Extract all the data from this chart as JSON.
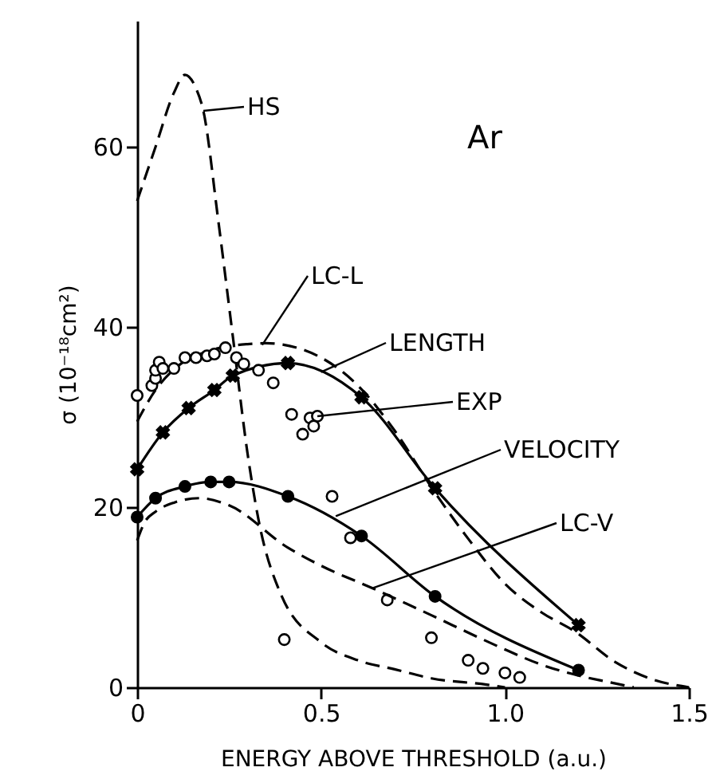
{
  "chart_data": {
    "type": "line",
    "xlabel": "ENERGY ABOVE THRESHOLD (a.u.)",
    "ylabel": "σ (10⁻¹⁸cm²)",
    "xlim": [
      0,
      1.5
    ],
    "ylim": [
      0,
      74
    ],
    "xticks": [
      {
        "value": 0,
        "label": "0"
      },
      0.5,
      {
        "value": 1,
        "label": "1.0"
      },
      1.5
    ],
    "yticks": [
      0,
      20,
      40,
      60
    ],
    "grid": false,
    "series": [
      {
        "color": "#000000",
        "line_style": "dashed",
        "marker": "none",
        "x": [
          0,
          0.05,
          0.1,
          0.13,
          0.16,
          0.18,
          0.22,
          0.26,
          0.3,
          0.33,
          0.39,
          0.5,
          0.6,
          0.7,
          0.8,
          0.95,
          1.0
        ],
        "values": [
          54,
          60,
          66,
          68,
          66.5,
          64,
          52,
          39,
          26,
          18.6,
          10.4,
          5,
          3,
          2,
          1,
          0.3,
          0
        ]
      },
      {
        "color": "#000000",
        "line_style": "dashed",
        "marker": "none",
        "x": [
          0,
          0.05,
          0.1,
          0.2,
          0.3,
          0.35,
          0.45,
          0.6,
          0.7,
          0.81,
          0.9,
          1.0,
          1.1,
          1.19,
          1.3,
          1.4,
          1.5
        ],
        "values": [
          29.5,
          33,
          35.3,
          37.4,
          38.1,
          38.2,
          37.5,
          33.5,
          28.5,
          21.6,
          16.5,
          11.5,
          8.3,
          6.2,
          2.8,
          0.9,
          0
        ]
      },
      {
        "color": "#000000",
        "line_style": "solid",
        "marker": "cross",
        "x": [
          0,
          0.07,
          0.14,
          0.21,
          0.26,
          0.41,
          0.61,
          0.81,
          1.2
        ],
        "values": [
          24.2,
          28.3,
          31,
          33,
          34.6,
          36,
          32.2,
          22.1,
          6.9
        ]
      },
      {
        "type": "scatter",
        "color": "#000000",
        "marker": "circle",
        "x": [
          0,
          0.04,
          0.05,
          0.05,
          0.06,
          0.07,
          0.1,
          0.13,
          0.16,
          0.19,
          0.21,
          0.24,
          0.27,
          0.29,
          0.33,
          0.37,
          0.42,
          0.45,
          0.47,
          0.49,
          0.48,
          0.53,
          0.4,
          0.58,
          0.68,
          0.8,
          0.9,
          0.94,
          1.0,
          1.04
        ],
        "values": [
          32.4,
          33.5,
          34.3,
          35.2,
          36.1,
          35.4,
          35.4,
          36.6,
          36.6,
          36.8,
          37,
          37.7,
          36.6,
          35.9,
          35.2,
          33.8,
          30.3,
          28.1,
          29.9,
          30.1,
          29,
          21.2,
          5.3,
          16.6,
          9.7,
          5.5,
          3,
          2.1,
          1.6,
          1.1
        ]
      },
      {
        "color": "#000000",
        "line_style": "solid",
        "marker": "circle",
        "x": [
          0,
          0.05,
          0.13,
          0.2,
          0.25,
          0.41,
          0.61,
          0.81,
          1.2
        ],
        "values": [
          18.9,
          21,
          22.3,
          22.8,
          22.8,
          21.2,
          16.8,
          10.1,
          1.9
        ]
      },
      {
        "color": "#000000",
        "line_style": "dashed",
        "marker": "none",
        "x": [
          0,
          0.02,
          0.05,
          0.1,
          0.17,
          0.25,
          0.41,
          0.5,
          0.64,
          0.8,
          0.93,
          1.0,
          1.1,
          1.2,
          1.28,
          1.35
        ],
        "values": [
          16.3,
          18.3,
          19.5,
          20.5,
          21,
          20.2,
          15.5,
          13.5,
          11,
          8,
          5.5,
          4.2,
          2.5,
          1.3,
          0.6,
          0
        ]
      }
    ],
    "annotations": [
      {
        "text": "HS",
        "x": 0.18,
        "y": 64
      },
      {
        "text": "LC-L",
        "x": 0.34,
        "y": 38
      },
      {
        "text": "LENGTH",
        "x": 0.5,
        "y": 35
      },
      {
        "text": "EXP",
        "x": 0.49,
        "y": 30.1
      },
      {
        "text": "VELOCITY",
        "x": 0.54,
        "y": 19
      },
      {
        "text": "LC-V",
        "x": 0.64,
        "y": 11
      },
      "Ar"
    ]
  }
}
